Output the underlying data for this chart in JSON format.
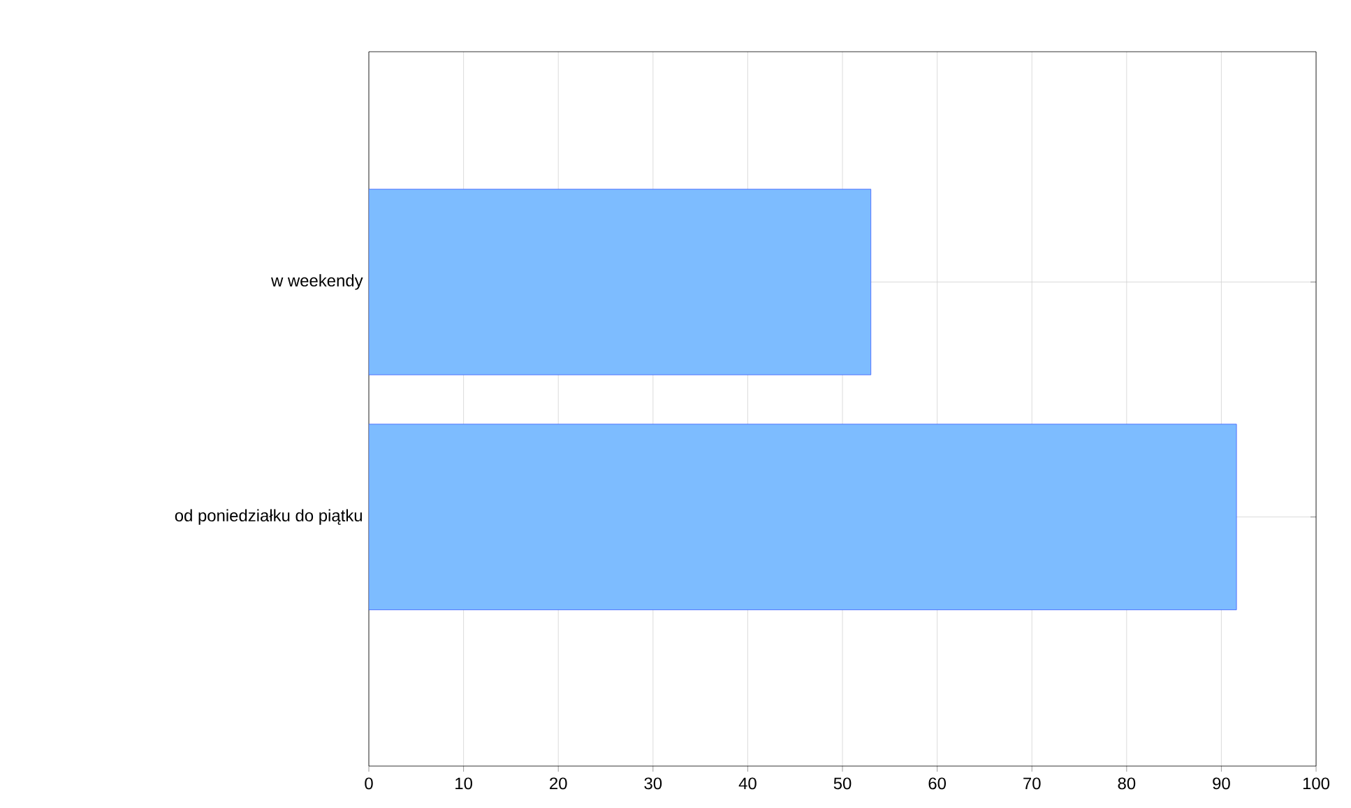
{
  "chart_data": {
    "type": "bar",
    "orientation": "horizontal",
    "categories": [
      "w weekendy",
      "od poniedziałku do piątku"
    ],
    "values": [
      53,
      91.6
    ],
    "color": "#7dbcff",
    "xlim": [
      0,
      100
    ],
    "xticks": [
      0,
      10,
      20,
      30,
      40,
      50,
      60,
      70,
      80,
      90,
      100
    ],
    "grid": true
  }
}
